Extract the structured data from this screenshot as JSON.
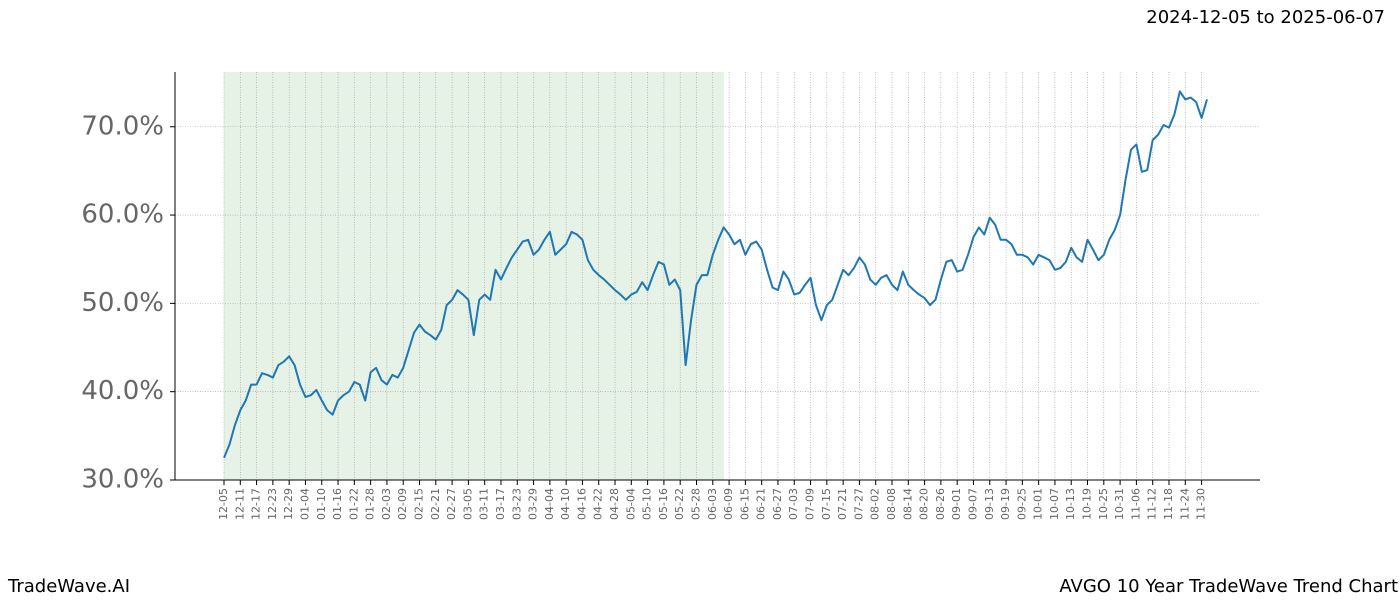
{
  "header": {
    "date_range": "2024-12-05 to 2025-06-07"
  },
  "footer": {
    "left": "TradeWave.AI",
    "right": "AVGO 10 Year TradeWave Trend Chart"
  },
  "chart_data": {
    "type": "line",
    "categories": [
      "12-05",
      null,
      null,
      "12-11",
      null,
      null,
      "12-17",
      null,
      null,
      "12-23",
      null,
      null,
      "12-29",
      null,
      null,
      "01-04",
      null,
      null,
      "01-10",
      null,
      null,
      "01-16",
      null,
      null,
      "01-22",
      null,
      null,
      "01-28",
      null,
      null,
      "02-03",
      null,
      null,
      "02-09",
      null,
      null,
      "02-15",
      null,
      null,
      "02-21",
      null,
      null,
      "02-27",
      null,
      null,
      "03-05",
      null,
      null,
      "03-11",
      null,
      null,
      "03-17",
      null,
      null,
      "03-23",
      null,
      null,
      "03-29",
      null,
      null,
      "04-04",
      null,
      null,
      "04-10",
      null,
      null,
      "04-16",
      null,
      null,
      "04-22",
      null,
      null,
      "04-28",
      null,
      null,
      "05-04",
      null,
      null,
      "05-10",
      null,
      null,
      "05-16",
      null,
      null,
      "05-22",
      null,
      null,
      "05-28",
      null,
      null,
      "06-03",
      null,
      null,
      "06-09",
      null,
      null,
      "06-15",
      null,
      null,
      "06-21",
      null,
      null,
      "06-27",
      null,
      null,
      "07-03",
      null,
      null,
      "07-09",
      null,
      null,
      "07-15",
      null,
      null,
      "07-21",
      null,
      null,
      "07-27",
      null,
      null,
      "08-02",
      null,
      null,
      "08-08",
      null,
      null,
      "08-14",
      null,
      null,
      "08-20",
      null,
      null,
      "08-26",
      null,
      null,
      "09-01",
      null,
      null,
      "09-07",
      null,
      null,
      "09-13",
      null,
      null,
      "09-19",
      null,
      null,
      "09-25",
      null,
      null,
      "10-01",
      null,
      null,
      "10-07",
      null,
      null,
      "10-13",
      null,
      null,
      "10-19",
      null,
      null,
      "10-25",
      null,
      null,
      "10-31",
      null,
      null,
      "11-06",
      null,
      null,
      "11-12",
      null,
      null,
      "11-18",
      null,
      null,
      "11-24",
      null,
      null,
      "11-30",
      null
    ],
    "values": [
      32.5,
      34,
      36.2,
      37.9,
      39,
      40.8,
      40.8,
      42.1,
      41.9,
      41.6,
      43,
      43.4,
      44,
      43,
      40.8,
      39.4,
      39.6,
      40.2,
      39,
      37.9,
      37.4,
      39,
      39.6,
      40,
      41.1,
      40.8,
      39,
      42.2,
      42.7,
      41.3,
      40.8,
      41.9,
      41.6,
      42.7,
      44.7,
      46.7,
      47.6,
      46.8,
      46.4,
      45.9,
      47,
      49.8,
      50.4,
      51.5,
      51,
      50.4,
      46.4,
      50.4,
      51,
      50.4,
      53.8,
      52.7,
      54,
      55.2,
      56.1,
      57,
      57.2,
      55.5,
      56.1,
      57.2,
      58.1,
      55.5,
      56.1,
      56.7,
      58.1,
      57.8,
      57.2,
      54.9,
      53.8,
      53.2,
      52.7,
      52.1,
      51.5,
      51,
      50.4,
      51,
      51.3,
      52.4,
      51.5,
      53.2,
      54.7,
      54.4,
      52.1,
      52.7,
      51.5,
      43,
      48.1,
      52.1,
      53.2,
      53.2,
      55.5,
      57.2,
      58.6,
      57.8,
      56.7,
      57.2,
      55.5,
      56.7,
      57,
      56.1,
      53.8,
      51.8,
      51.5,
      53.6,
      52.7,
      51,
      51.2,
      52.1,
      52.9,
      49.8,
      48.1,
      49.8,
      50.4,
      52.1,
      53.8,
      53.2,
      54,
      55.2,
      54.4,
      52.7,
      52.1,
      52.9,
      53.2,
      52.1,
      51.5,
      53.6,
      52.1,
      51.5,
      51,
      50.6,
      49.8,
      50.4,
      52.7,
      54.7,
      54.9,
      53.6,
      53.8,
      55.5,
      57.5,
      58.6,
      57.8,
      59.7,
      58.9,
      57.2,
      57.2,
      56.7,
      55.5,
      55.5,
      55.2,
      54.4,
      55.5,
      55.2,
      54.9,
      53.8,
      54,
      54.7,
      56.3,
      55.2,
      54.7,
      57.2,
      56.1,
      54.9,
      55.5,
      57.2,
      58.3,
      60,
      64,
      67.4,
      68,
      64.9,
      65.1,
      68.5,
      69.1,
      70.2,
      69.9,
      71.4,
      74,
      73.1,
      73.3,
      72.8,
      71,
      73.1
    ],
    "color": "#1f77b4",
    "ylim": [
      30,
      76.2
    ],
    "yticks": [
      {
        "value": 30,
        "label": "30.0%"
      },
      {
        "value": 40,
        "label": "40.0%"
      },
      {
        "value": 50,
        "label": "50.0%"
      },
      {
        "value": 60,
        "label": "60.0%"
      },
      {
        "value": 70,
        "label": "70.0%"
      }
    ],
    "grid": true
  }
}
